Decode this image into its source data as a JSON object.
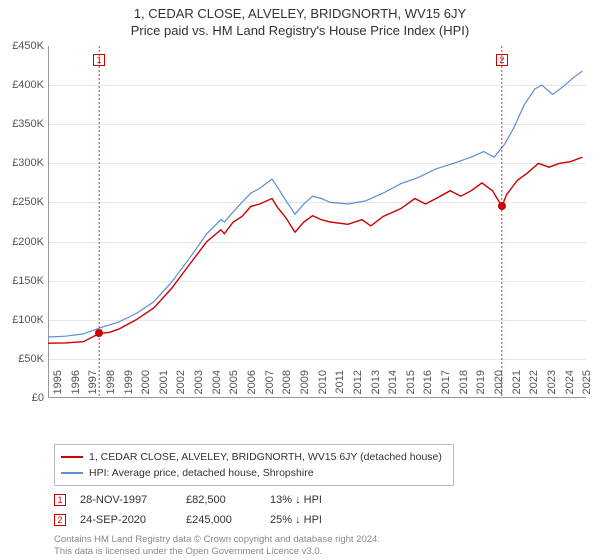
{
  "title": "1, CEDAR CLOSE, ALVELEY, BRIDGNORTH, WV15 6JY",
  "subtitle": "Price paid vs. HM Land Registry's House Price Index (HPI)",
  "chart": {
    "type": "line",
    "x_start": 1995,
    "x_end": 2025.5,
    "y_min": 0,
    "y_max": 450000,
    "y_ticks": [
      0,
      50000,
      100000,
      150000,
      200000,
      250000,
      300000,
      350000,
      400000,
      450000
    ],
    "y_tick_labels": [
      "£0",
      "£50K",
      "£100K",
      "£150K",
      "£200K",
      "£250K",
      "£300K",
      "£350K",
      "£400K",
      "£450K"
    ],
    "x_ticks": [
      1995,
      1996,
      1997,
      1998,
      1999,
      2000,
      2001,
      2002,
      2003,
      2004,
      2005,
      2006,
      2007,
      2008,
      2009,
      2010,
      2011,
      2012,
      2013,
      2014,
      2015,
      2016,
      2017,
      2018,
      2019,
      2020,
      2021,
      2022,
      2023,
      2024,
      2025
    ],
    "grid_color": "#e8e8e8",
    "axis_color": "#999999",
    "background": "#ffffff",
    "series_property": {
      "label": "1, CEDAR CLOSE, ALVELEY, BRIDGNORTH, WV15 6JY (detached house)",
      "color": "#cc0000",
      "width": 1.4,
      "points": [
        [
          1995,
          70000
        ],
        [
          1996,
          70500
        ],
        [
          1997,
          72000
        ],
        [
          1997.9,
          82500
        ],
        [
          1998.5,
          84000
        ],
        [
          1999,
          88000
        ],
        [
          2000,
          100000
        ],
        [
          2001,
          115000
        ],
        [
          2002,
          140000
        ],
        [
          2003,
          170000
        ],
        [
          2004,
          200000
        ],
        [
          2004.8,
          215000
        ],
        [
          2005,
          210000
        ],
        [
          2005.5,
          225000
        ],
        [
          2006,
          232000
        ],
        [
          2006.5,
          245000
        ],
        [
          2007,
          248000
        ],
        [
          2007.7,
          255000
        ],
        [
          2008,
          244000
        ],
        [
          2008.5,
          230000
        ],
        [
          2009,
          212000
        ],
        [
          2009.5,
          225000
        ],
        [
          2010,
          233000
        ],
        [
          2010.5,
          228000
        ],
        [
          2011,
          225000
        ],
        [
          2012,
          222000
        ],
        [
          2012.8,
          228000
        ],
        [
          2013.3,
          220000
        ],
        [
          2014,
          232000
        ],
        [
          2015,
          242000
        ],
        [
          2015.8,
          255000
        ],
        [
          2016.4,
          248000
        ],
        [
          2017,
          255000
        ],
        [
          2017.8,
          265000
        ],
        [
          2018.4,
          258000
        ],
        [
          2019,
          265000
        ],
        [
          2019.6,
          275000
        ],
        [
          2020.2,
          265000
        ],
        [
          2020.73,
          245000
        ],
        [
          2021,
          260000
        ],
        [
          2021.6,
          278000
        ],
        [
          2022.2,
          288000
        ],
        [
          2022.8,
          300000
        ],
        [
          2023.4,
          295000
        ],
        [
          2024,
          300000
        ],
        [
          2024.6,
          302000
        ],
        [
          2025.3,
          308000
        ]
      ]
    },
    "series_hpi": {
      "label": "HPI: Average price, detached house, Shropshire",
      "color": "#5b8fd6",
      "width": 1.2,
      "points": [
        [
          1995,
          78000
        ],
        [
          1996,
          79000
        ],
        [
          1997,
          82000
        ],
        [
          1998,
          90000
        ],
        [
          1999,
          97000
        ],
        [
          2000,
          108000
        ],
        [
          2001,
          123000
        ],
        [
          2002,
          148000
        ],
        [
          2003,
          178000
        ],
        [
          2004,
          210000
        ],
        [
          2004.8,
          228000
        ],
        [
          2005,
          225000
        ],
        [
          2005.5,
          238000
        ],
        [
          2006,
          250000
        ],
        [
          2006.5,
          262000
        ],
        [
          2007,
          268000
        ],
        [
          2007.7,
          280000
        ],
        [
          2008,
          270000
        ],
        [
          2008.5,
          252000
        ],
        [
          2009,
          235000
        ],
        [
          2009.5,
          248000
        ],
        [
          2010,
          258000
        ],
        [
          2010.5,
          255000
        ],
        [
          2011,
          250000
        ],
        [
          2012,
          248000
        ],
        [
          2013,
          252000
        ],
        [
          2014,
          262000
        ],
        [
          2015,
          274000
        ],
        [
          2016,
          282000
        ],
        [
          2017,
          293000
        ],
        [
          2018,
          300000
        ],
        [
          2019,
          308000
        ],
        [
          2019.7,
          315000
        ],
        [
          2020.3,
          308000
        ],
        [
          2020.9,
          325000
        ],
        [
          2021.4,
          345000
        ],
        [
          2022,
          375000
        ],
        [
          2022.6,
          395000
        ],
        [
          2023,
          400000
        ],
        [
          2023.6,
          388000
        ],
        [
          2024.2,
          398000
        ],
        [
          2024.8,
          410000
        ],
        [
          2025.3,
          418000
        ]
      ]
    },
    "markers": [
      {
        "n": "1",
        "x": 1997.9,
        "y": 82500,
        "box_color": "#cc0000"
      },
      {
        "n": "2",
        "x": 2020.73,
        "y": 245000,
        "box_color": "#cc0000"
      }
    ]
  },
  "legend": {
    "rows": [
      {
        "color": "#cc0000",
        "label": "1, CEDAR CLOSE, ALVELEY, BRIDGNORTH, WV15 6JY (detached house)"
      },
      {
        "color": "#5b8fd6",
        "label": "HPI: Average price, detached house, Shropshire"
      }
    ]
  },
  "sales": [
    {
      "n": "1",
      "box_color": "#cc0000",
      "date": "28-NOV-1997",
      "price": "£82,500",
      "delta": "13% ↓ HPI"
    },
    {
      "n": "2",
      "box_color": "#cc0000",
      "date": "24-SEP-2020",
      "price": "£245,000",
      "delta": "25% ↓ HPI"
    }
  ],
  "footer_line1": "Contains HM Land Registry data © Crown copyright and database right 2024.",
  "footer_line2": "This data is licensed under the Open Government Licence v3.0."
}
